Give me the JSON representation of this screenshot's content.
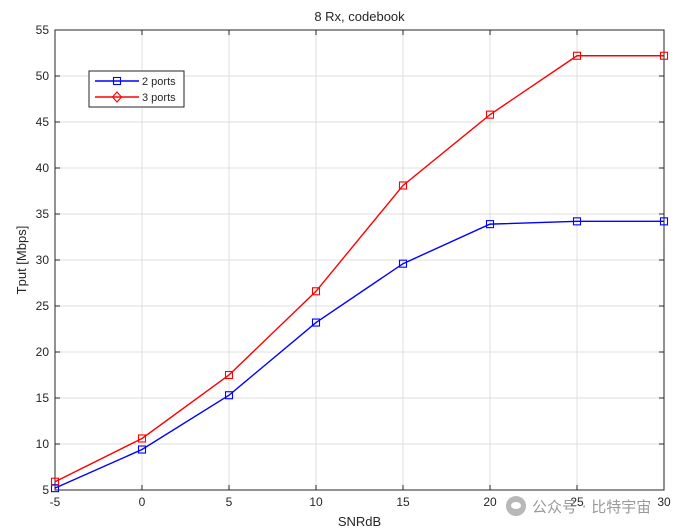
{
  "chart_data": {
    "type": "line",
    "title": "8 Rx, codebook",
    "xlabel": "SNRdB",
    "ylabel": "Tput [Mbps]",
    "x": [
      -5,
      0,
      5,
      10,
      15,
      20,
      25,
      30
    ],
    "xlim": [
      -5,
      30
    ],
    "ylim": [
      5,
      55
    ],
    "xticks": [
      -5,
      0,
      5,
      10,
      15,
      20,
      25,
      30
    ],
    "yticks": [
      5,
      10,
      15,
      20,
      25,
      30,
      35,
      40,
      45,
      50,
      55
    ],
    "grid": true,
    "legend_position": "top-left",
    "series": [
      {
        "name": "2 ports",
        "color": "#0000ff",
        "marker": "square",
        "values": [
          5.2,
          9.4,
          15.3,
          23.2,
          29.6,
          33.9,
          34.2,
          34.2
        ]
      },
      {
        "name": "3 ports",
        "color": "#ff0000",
        "marker": "square",
        "legend_marker": "diamond",
        "values": [
          5.9,
          10.6,
          17.5,
          26.6,
          38.1,
          45.8,
          52.2,
          52.2
        ]
      }
    ]
  },
  "watermark": {
    "text": "公众号 · 比特宇宙"
  }
}
